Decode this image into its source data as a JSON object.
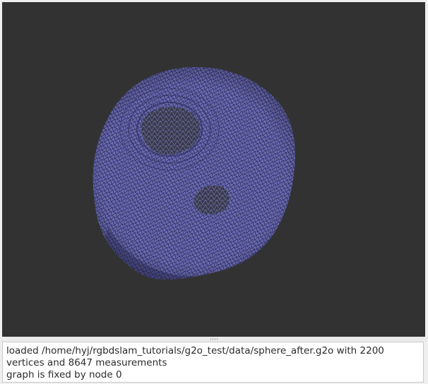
{
  "viewer": {
    "background": "#323232",
    "mesh_fill": "#6c6cb8",
    "mesh_line": "#26264a"
  },
  "log": {
    "lines": [
      "loaded /home/hyj/rgbdslam_tutorials/g2o_test/data/sphere_after.g2o with 2200\nvertices and 8647 measurements",
      "graph is fixed by node 0"
    ]
  }
}
